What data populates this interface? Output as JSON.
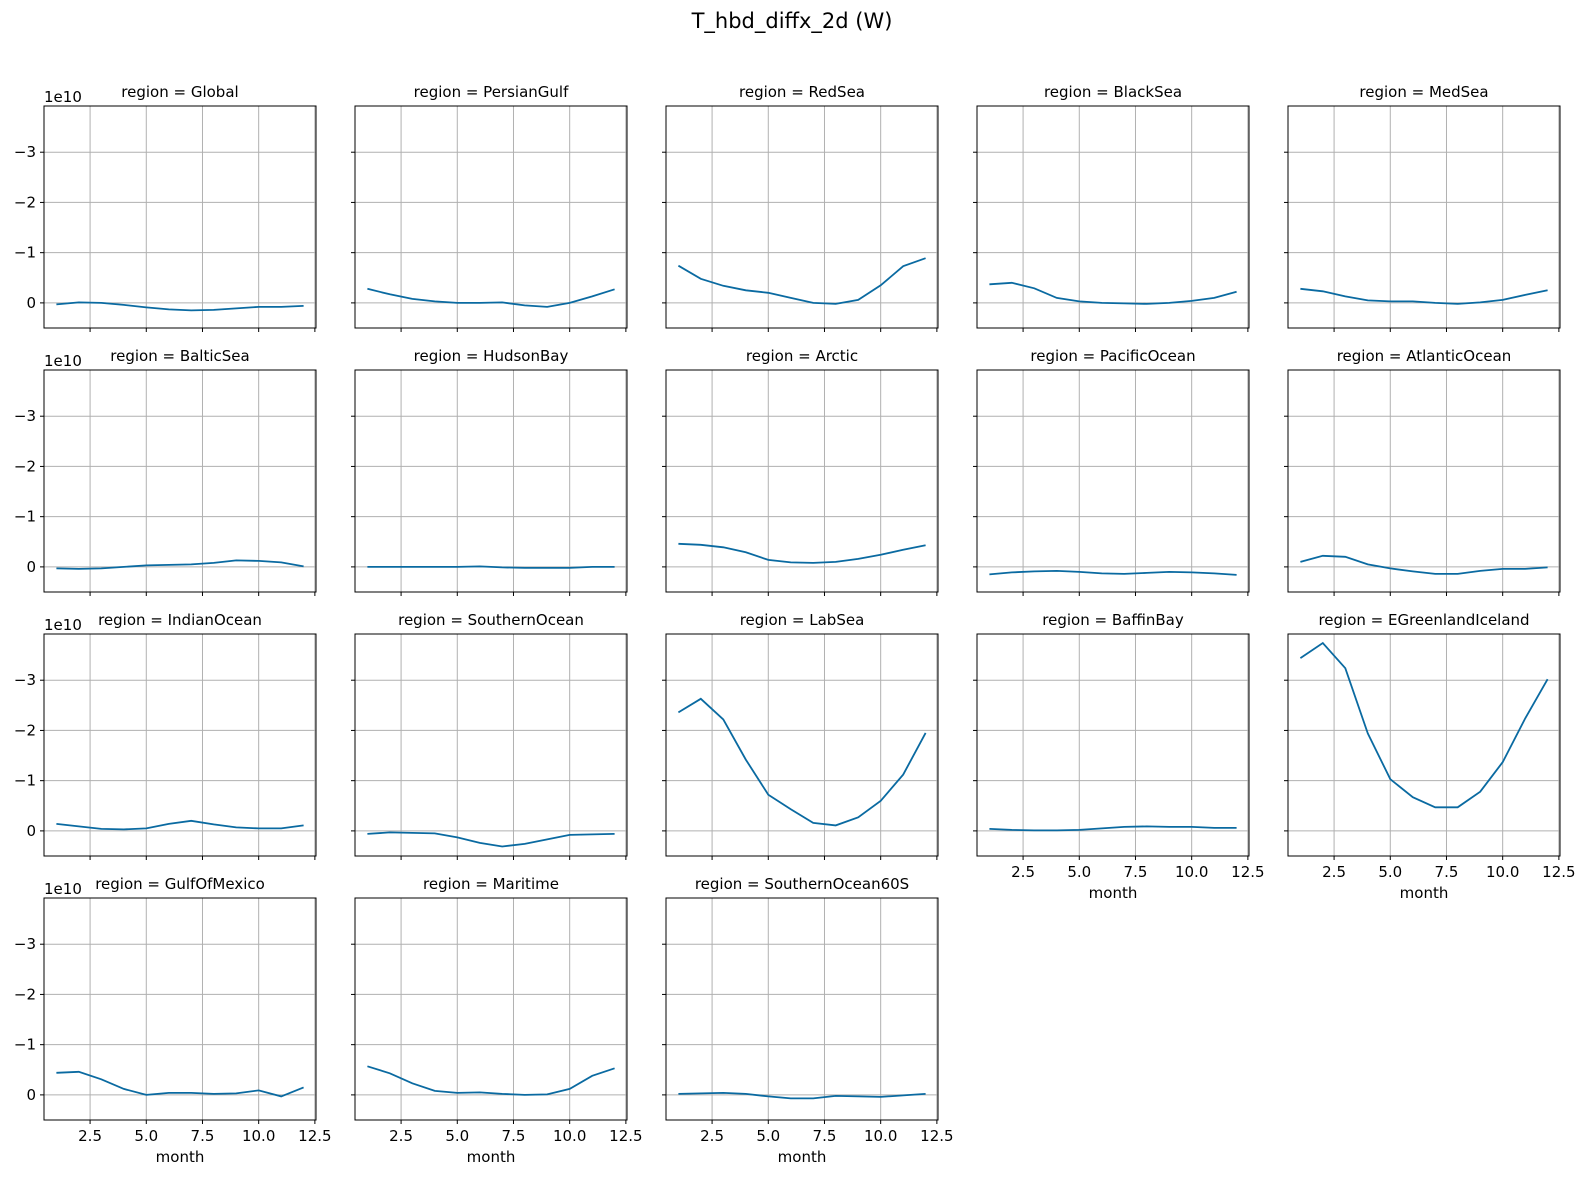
{
  "figure": {
    "title": "T_hbd_diffx_2d (W)",
    "x_axis_label": "month",
    "y_offset_label": "1e10",
    "line_color": "#0a6aa1",
    "grid_color": "#b0b0b0"
  },
  "chart_data": {
    "type": "line",
    "layout": {
      "rows": 4,
      "cols": 5
    },
    "x_ticks": [
      2.5,
      5.0,
      7.5,
      10.0,
      12.5
    ],
    "x_tick_labels": [
      "2.5",
      "5.0",
      "7.5",
      "10.0",
      "12.5"
    ],
    "xlim": [
      0.45,
      12.55
    ],
    "y_ticks": [
      0,
      -1,
      -2,
      -3
    ],
    "y_tick_labels": [
      "0",
      "−1",
      "−2",
      "−3"
    ],
    "ylim": [
      0.5,
      -3.92
    ],
    "y_inverted": true,
    "y_scale_note": "1e10",
    "x": [
      1,
      2,
      3,
      4,
      5,
      6,
      7,
      8,
      9,
      10,
      11,
      12
    ],
    "panels": [
      {
        "title": "region = Global",
        "values": [
          0.03,
          -0.01,
          0.0,
          0.04,
          0.09,
          0.13,
          0.15,
          0.14,
          0.11,
          0.08,
          0.08,
          0.06
        ]
      },
      {
        "title": "region = PersianGulf",
        "values": [
          -0.28,
          -0.17,
          -0.08,
          -0.03,
          0.0,
          0.0,
          -0.01,
          0.05,
          0.08,
          0.0,
          -0.13,
          -0.27
        ]
      },
      {
        "title": "region = RedSea",
        "values": [
          -0.74,
          -0.48,
          -0.34,
          -0.25,
          -0.2,
          -0.1,
          0.0,
          0.02,
          -0.06,
          -0.35,
          -0.73,
          -0.89
        ]
      },
      {
        "title": "region = BlackSea",
        "values": [
          -0.37,
          -0.4,
          -0.29,
          -0.1,
          -0.03,
          0.0,
          0.01,
          0.02,
          0.0,
          -0.04,
          -0.1,
          -0.22
        ]
      },
      {
        "title": "region = MedSea",
        "values": [
          -0.28,
          -0.23,
          -0.13,
          -0.05,
          -0.03,
          -0.03,
          0.0,
          0.02,
          -0.01,
          -0.06,
          -0.16,
          -0.25
        ]
      },
      {
        "title": "region = BalticSea",
        "values": [
          0.03,
          0.04,
          0.03,
          0.0,
          -0.03,
          -0.04,
          -0.05,
          -0.08,
          -0.13,
          -0.12,
          -0.09,
          -0.01
        ]
      },
      {
        "title": "region = HudsonBay",
        "values": [
          0.0,
          0.0,
          0.0,
          0.0,
          0.0,
          -0.01,
          0.01,
          0.02,
          0.02,
          0.02,
          0.0,
          0.0
        ]
      },
      {
        "title": "region = Arctic",
        "values": [
          -0.46,
          -0.44,
          -0.39,
          -0.29,
          -0.14,
          -0.09,
          -0.08,
          -0.1,
          -0.16,
          -0.24,
          -0.34,
          -0.43
        ]
      },
      {
        "title": "region = PacificOcean",
        "values": [
          0.15,
          0.11,
          0.09,
          0.08,
          0.1,
          0.13,
          0.14,
          0.12,
          0.1,
          0.11,
          0.13,
          0.16
        ]
      },
      {
        "title": "region = AtlanticOcean",
        "values": [
          -0.1,
          -0.22,
          -0.2,
          -0.05,
          0.03,
          0.09,
          0.14,
          0.14,
          0.08,
          0.04,
          0.04,
          0.01
        ]
      },
      {
        "title": "region = IndianOcean",
        "values": [
          -0.14,
          -0.09,
          -0.04,
          -0.03,
          -0.05,
          -0.14,
          -0.2,
          -0.13,
          -0.07,
          -0.05,
          -0.05,
          -0.11
        ]
      },
      {
        "title": "region = SouthernOcean",
        "values": [
          0.06,
          0.03,
          0.04,
          0.05,
          0.13,
          0.24,
          0.31,
          0.26,
          0.17,
          0.08,
          0.07,
          0.06
        ]
      },
      {
        "title": "region = LabSea",
        "values": [
          -2.36,
          -2.63,
          -2.22,
          -1.42,
          -0.72,
          -0.43,
          -0.16,
          -0.11,
          -0.27,
          -0.6,
          -1.12,
          -1.95
        ]
      },
      {
        "title": "region = BaffinBay",
        "values": [
          -0.04,
          -0.02,
          -0.01,
          -0.01,
          -0.02,
          -0.05,
          -0.08,
          -0.09,
          -0.08,
          -0.08,
          -0.06,
          -0.06
        ]
      },
      {
        "title": "region = EGreenlandIceland",
        "values": [
          -3.44,
          -3.74,
          -3.24,
          -1.94,
          -1.03,
          -0.67,
          -0.47,
          -0.47,
          -0.78,
          -1.37,
          -2.24,
          -3.02
        ]
      },
      {
        "title": "region = GulfOfMexico",
        "values": [
          -0.44,
          -0.46,
          -0.31,
          -0.12,
          0.0,
          -0.04,
          -0.04,
          -0.02,
          -0.03,
          -0.09,
          0.03,
          -0.15
        ]
      },
      {
        "title": "region = Maritime",
        "values": [
          -0.57,
          -0.43,
          -0.23,
          -0.08,
          -0.04,
          -0.05,
          -0.02,
          0.0,
          -0.01,
          -0.12,
          -0.38,
          -0.53
        ]
      },
      {
        "title": "region = SouthernOcean60S",
        "values": [
          -0.02,
          -0.03,
          -0.04,
          -0.02,
          0.03,
          0.07,
          0.07,
          0.02,
          0.03,
          0.04,
          0.01,
          -0.02
        ]
      }
    ]
  }
}
